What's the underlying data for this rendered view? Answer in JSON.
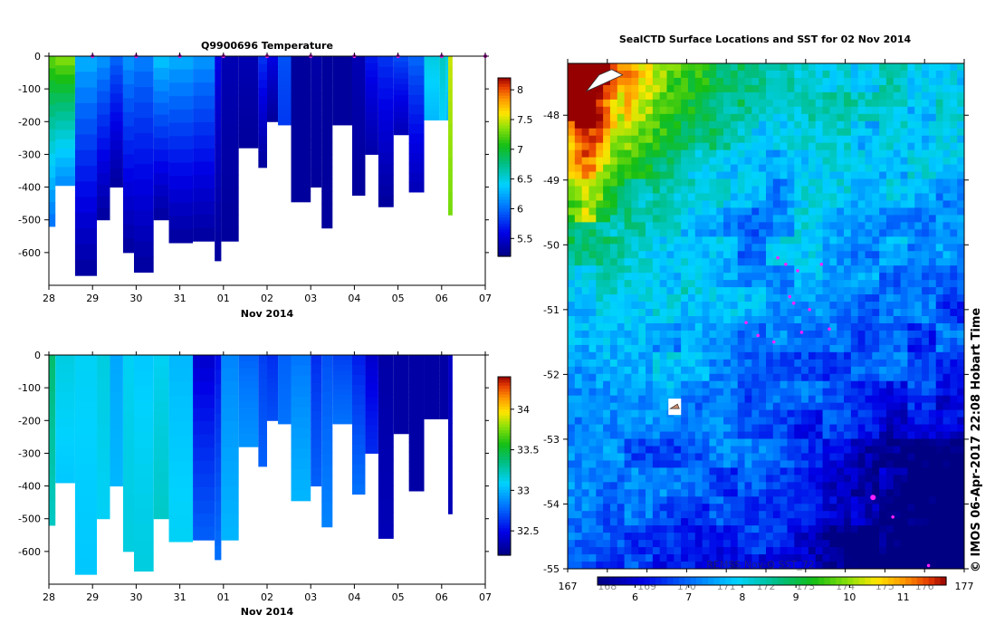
{
  "chart_data": [
    {
      "type": "heatmap",
      "id": "temperature",
      "title": "Q9900696  Temperature",
      "xlabel": "Nov 2014",
      "x_tick_labels": [
        "28",
        "29",
        "30",
        "31",
        "01",
        "02",
        "03",
        "04",
        "05",
        "06",
        "07"
      ],
      "x_range_days": [
        0,
        10
      ],
      "y_tick_labels": [
        "0",
        "-100",
        "-200",
        "-300",
        "-400",
        "-500",
        "-600"
      ],
      "y_tick_values": [
        0,
        -100,
        -200,
        -300,
        -400,
        -500,
        -600
      ],
      "ylim": [
        -700,
        0
      ],
      "colorbar_ticks": [
        "8",
        "7.5",
        "7",
        "6.5",
        "6",
        "5.5"
      ],
      "colorbar_values": [
        8,
        7.5,
        7,
        6.5,
        6,
        5.5
      ],
      "colorbar_range": [
        5.2,
        8.2
      ],
      "profile_markers_days": [
        1,
        2,
        3,
        4,
        5,
        6,
        7,
        8,
        9,
        10
      ],
      "profiles": [
        {
          "t0": 0.0,
          "t1": 0.6,
          "depth": -395,
          "top": 7.4,
          "bottom": 6.1
        },
        {
          "t0": 0.0,
          "t1": 0.15,
          "depth": -520,
          "top": 7.3,
          "bottom": 6.0
        },
        {
          "t0": 0.6,
          "t1": 1.1,
          "depth": -670,
          "top": 6.3,
          "bottom": 5.3
        },
        {
          "t0": 1.1,
          "t1": 1.4,
          "depth": -500,
          "top": 6.2,
          "bottom": 5.3
        },
        {
          "t0": 1.4,
          "t1": 1.7,
          "depth": -400,
          "top": 6.0,
          "bottom": 5.3
        },
        {
          "t0": 1.7,
          "t1": 1.95,
          "depth": -600,
          "top": 6.2,
          "bottom": 5.3
        },
        {
          "t0": 1.95,
          "t1": 2.4,
          "depth": -660,
          "top": 6.1,
          "bottom": 5.3
        },
        {
          "t0": 2.4,
          "t1": 2.75,
          "depth": -500,
          "top": 6.4,
          "bottom": 5.3
        },
        {
          "t0": 2.75,
          "t1": 3.3,
          "depth": -570,
          "top": 6.3,
          "bottom": 5.3
        },
        {
          "t0": 3.3,
          "t1": 3.8,
          "depth": -565,
          "top": 6.2,
          "bottom": 5.3
        },
        {
          "t0": 3.8,
          "t1": 3.95,
          "depth": -625,
          "top": 5.6,
          "bottom": 5.3
        },
        {
          "t0": 3.95,
          "t1": 4.35,
          "depth": -565,
          "top": 5.4,
          "bottom": 5.3
        },
        {
          "t0": 4.35,
          "t1": 4.8,
          "depth": -280,
          "top": 5.4,
          "bottom": 5.3
        },
        {
          "t0": 4.8,
          "t1": 5.0,
          "depth": -340,
          "top": 5.8,
          "bottom": 5.3
        },
        {
          "t0": 5.0,
          "t1": 5.25,
          "depth": -200,
          "top": 5.6,
          "bottom": 5.3
        },
        {
          "t0": 5.25,
          "t1": 5.55,
          "depth": -210,
          "top": 5.9,
          "bottom": 5.8
        },
        {
          "t0": 5.55,
          "t1": 6.0,
          "depth": -445,
          "top": 5.3,
          "bottom": 5.3
        },
        {
          "t0": 6.0,
          "t1": 6.25,
          "depth": -400,
          "top": 5.35,
          "bottom": 5.3
        },
        {
          "t0": 6.25,
          "t1": 6.5,
          "depth": -525,
          "top": 5.3,
          "bottom": 5.3
        },
        {
          "t0": 6.5,
          "t1": 6.95,
          "depth": -210,
          "top": 5.3,
          "bottom": 5.3
        },
        {
          "t0": 6.95,
          "t1": 7.25,
          "depth": -425,
          "top": 5.4,
          "bottom": 5.3
        },
        {
          "t0": 7.25,
          "t1": 7.55,
          "depth": -300,
          "top": 5.7,
          "bottom": 5.35
        },
        {
          "t0": 7.55,
          "t1": 7.9,
          "depth": -460,
          "top": 5.8,
          "bottom": 5.3
        },
        {
          "t0": 7.9,
          "t1": 8.25,
          "depth": -240,
          "top": 5.9,
          "bottom": 5.4
        },
        {
          "t0": 8.25,
          "t1": 8.6,
          "depth": -415,
          "top": 6.0,
          "bottom": 5.4
        },
        {
          "t0": 8.6,
          "t1": 8.95,
          "depth": -195,
          "top": 6.5,
          "bottom": 6.3
        },
        {
          "t0": 8.95,
          "t1": 9.1,
          "depth": -195,
          "top": 6.6,
          "bottom": 6.4
        },
        {
          "t0": 9.1,
          "t1": 9.15,
          "depth": -195,
          "top": 6.5,
          "bottom": 6.3
        },
        {
          "t0": 9.15,
          "t1": 9.25,
          "depth": -485,
          "top": 7.5,
          "bottom": 7.3
        }
      ]
    },
    {
      "type": "heatmap",
      "id": "salinity",
      "title": "",
      "xlabel": "Nov 2014",
      "x_tick_labels": [
        "28",
        "29",
        "30",
        "31",
        "01",
        "02",
        "03",
        "04",
        "05",
        "06",
        "07"
      ],
      "x_range_days": [
        0,
        10
      ],
      "y_tick_labels": [
        "0",
        "-100",
        "-200",
        "-300",
        "-400",
        "-500",
        "-600"
      ],
      "y_tick_values": [
        0,
        -100,
        -200,
        -300,
        -400,
        -500,
        -600
      ],
      "ylim": [
        -700,
        0
      ],
      "colorbar_ticks": [
        "34",
        "33.5",
        "33",
        "32.5"
      ],
      "colorbar_values": [
        34,
        33.5,
        33,
        32.5
      ],
      "colorbar_range": [
        32.2,
        34.4
      ],
      "profiles": [
        {
          "t0": 0.0,
          "t1": 0.15,
          "depth": -520,
          "top": 33.4,
          "bottom": 33.2
        },
        {
          "t0": 0.15,
          "t1": 0.6,
          "depth": -390,
          "top": 33.15,
          "bottom": 33.05
        },
        {
          "t0": 0.6,
          "t1": 1.1,
          "depth": -670,
          "top": 33.1,
          "bottom": 33.05
        },
        {
          "t0": 1.1,
          "t1": 1.4,
          "depth": -500,
          "top": 33.15,
          "bottom": 33.1
        },
        {
          "t0": 1.4,
          "t1": 1.7,
          "depth": -400,
          "top": 32.95,
          "bottom": 33.0
        },
        {
          "t0": 1.7,
          "t1": 1.95,
          "depth": -600,
          "top": 33.1,
          "bottom": 33.15
        },
        {
          "t0": 1.95,
          "t1": 2.4,
          "depth": -660,
          "top": 33.05,
          "bottom": 33.15
        },
        {
          "t0": 2.4,
          "t1": 2.75,
          "depth": -500,
          "top": 33.1,
          "bottom": 33.2
        },
        {
          "t0": 2.75,
          "t1": 3.3,
          "depth": -570,
          "top": 33.0,
          "bottom": 33.1
        },
        {
          "t0": 3.3,
          "t1": 3.8,
          "depth": -565,
          "top": 32.4,
          "bottom": 32.75
        },
        {
          "t0": 3.8,
          "t1": 3.95,
          "depth": -625,
          "top": 32.5,
          "bottom": 32.8
        },
        {
          "t0": 3.95,
          "t1": 4.35,
          "depth": -565,
          "top": 32.85,
          "bottom": 33.0
        },
        {
          "t0": 4.35,
          "t1": 4.8,
          "depth": -280,
          "top": 32.75,
          "bottom": 32.9
        },
        {
          "t0": 4.8,
          "t1": 5.0,
          "depth": -340,
          "top": 32.65,
          "bottom": 32.75
        },
        {
          "t0": 5.0,
          "t1": 5.25,
          "depth": -200,
          "top": 32.6,
          "bottom": 32.7
        },
        {
          "t0": 5.25,
          "t1": 5.55,
          "depth": -210,
          "top": 32.75,
          "bottom": 32.8
        },
        {
          "t0": 5.55,
          "t1": 6.0,
          "depth": -445,
          "top": 32.8,
          "bottom": 33.0
        },
        {
          "t0": 6.0,
          "t1": 6.25,
          "depth": -400,
          "top": 32.6,
          "bottom": 32.75
        },
        {
          "t0": 6.25,
          "t1": 6.5,
          "depth": -525,
          "top": 32.7,
          "bottom": 32.85
        },
        {
          "t0": 6.5,
          "t1": 6.95,
          "depth": -210,
          "top": 32.65,
          "bottom": 32.8
        },
        {
          "t0": 6.95,
          "t1": 7.25,
          "depth": -425,
          "top": 32.55,
          "bottom": 32.8
        },
        {
          "t0": 7.25,
          "t1": 7.55,
          "depth": -300,
          "top": 32.4,
          "bottom": 32.6
        },
        {
          "t0": 7.55,
          "t1": 7.9,
          "depth": -560,
          "top": 32.3,
          "bottom": 32.35
        },
        {
          "t0": 7.9,
          "t1": 8.25,
          "depth": -240,
          "top": 32.3,
          "bottom": 32.3
        },
        {
          "t0": 8.25,
          "t1": 8.6,
          "depth": -415,
          "top": 32.3,
          "bottom": 32.3
        },
        {
          "t0": 8.6,
          "t1": 8.95,
          "depth": -195,
          "top": 32.3,
          "bottom": 32.3
        },
        {
          "t0": 8.95,
          "t1": 9.15,
          "depth": -195,
          "top": 32.3,
          "bottom": 32.3
        },
        {
          "t0": 9.15,
          "t1": 9.25,
          "depth": -485,
          "top": 32.4,
          "bottom": 32.35
        }
      ]
    },
    {
      "type": "heatmap",
      "id": "sst-map",
      "title": "SealCTD Surface Locations and SST for 02 Nov 2014",
      "x_tick_labels": [
        "167",
        "168",
        "169",
        "170",
        "171",
        "172",
        "173",
        "174",
        "175",
        "176",
        "177"
      ],
      "xlim": [
        167,
        177
      ],
      "y_tick_labels": [
        "-48",
        "-49",
        "-50",
        "-51",
        "-52",
        "-53",
        "-54",
        "-55"
      ],
      "ylim": [
        -55,
        -47.2
      ],
      "colorbar_ticks": [
        "6",
        "7",
        "8",
        "9",
        "10",
        "11"
      ],
      "colorbar_values": [
        6,
        7,
        8,
        9,
        10,
        11
      ],
      "colorbar_range": [
        5.3,
        11.8
      ],
      "sst_source_label": "REMSS Nov-Q SST_72",
      "watermark": "© IMOS 06-Apr-2017 22:08 Hobart Time",
      "seal_positions": [
        {
          "lon": 172.3,
          "lat": -50.2
        },
        {
          "lon": 172.5,
          "lat": -50.3
        },
        {
          "lon": 172.8,
          "lat": -50.4
        },
        {
          "lon": 173.4,
          "lat": -50.3
        },
        {
          "lon": 172.6,
          "lat": -50.8
        },
        {
          "lon": 172.9,
          "lat": -51.35
        },
        {
          "lon": 171.8,
          "lat": -51.4
        },
        {
          "lon": 173.6,
          "lat": -51.3
        },
        {
          "lon": 171.5,
          "lat": -51.2
        },
        {
          "lon": 172.2,
          "lat": -51.5
        },
        {
          "lon": 172.7,
          "lat": -50.9
        },
        {
          "lon": 174.7,
          "lat": -53.9
        },
        {
          "lon": 175.2,
          "lat": -54.2
        },
        {
          "lon": 176.1,
          "lat": -54.95
        },
        {
          "lon": 173.1,
          "lat": -51.0
        }
      ],
      "islands": [
        {
          "lon": 167.7,
          "lat": -47.35,
          "label": ""
        },
        {
          "lon": 169.7,
          "lat": -52.5,
          "label": ""
        }
      ]
    }
  ]
}
